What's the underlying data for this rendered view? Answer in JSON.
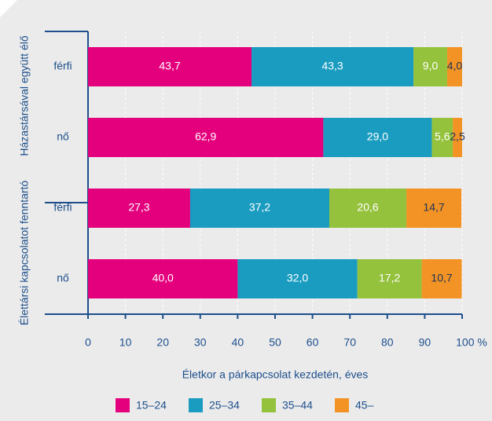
{
  "chart_data": {
    "type": "stacked-barh",
    "categories": [
      "férfi",
      "nő",
      "férfi",
      "nő"
    ],
    "groups": [
      "Házastársával együtt élő",
      "Élettársi kapcsolatot fenntartó"
    ],
    "series": [
      {
        "name": "15–24",
        "color": "#e4007d",
        "values": [
          43.7,
          62.9,
          27.3,
          40.0
        ],
        "value_labels": [
          "43,7",
          "62,9",
          "27,3",
          "40,0"
        ]
      },
      {
        "name": "25–34",
        "color": "#1a9cc0",
        "values": [
          43.3,
          29.0,
          37.2,
          32.0
        ],
        "value_labels": [
          "43,3",
          "29,0",
          "37,2",
          "32,0"
        ]
      },
      {
        "name": "35–44",
        "color": "#95c23d",
        "values": [
          9.0,
          5.6,
          20.6,
          17.2
        ],
        "value_labels": [
          "9,0",
          "5,6",
          "20,6",
          "17,2"
        ]
      },
      {
        "name": "45–",
        "color": "#f39325",
        "values": [
          4.0,
          2.5,
          14.7,
          10.7
        ],
        "value_labels": [
          "4,0",
          "2,5",
          "14,7",
          "10,7"
        ]
      }
    ],
    "xlim": [
      0,
      100
    ],
    "xticks": [
      0,
      10,
      20,
      30,
      40,
      50,
      60,
      70,
      80,
      90,
      {
        "value": 100,
        "label": "100 %"
      }
    ],
    "x_label": "Életkor a párkapcsolat kezdetén, éves",
    "grid": true,
    "legend": "bottom"
  }
}
